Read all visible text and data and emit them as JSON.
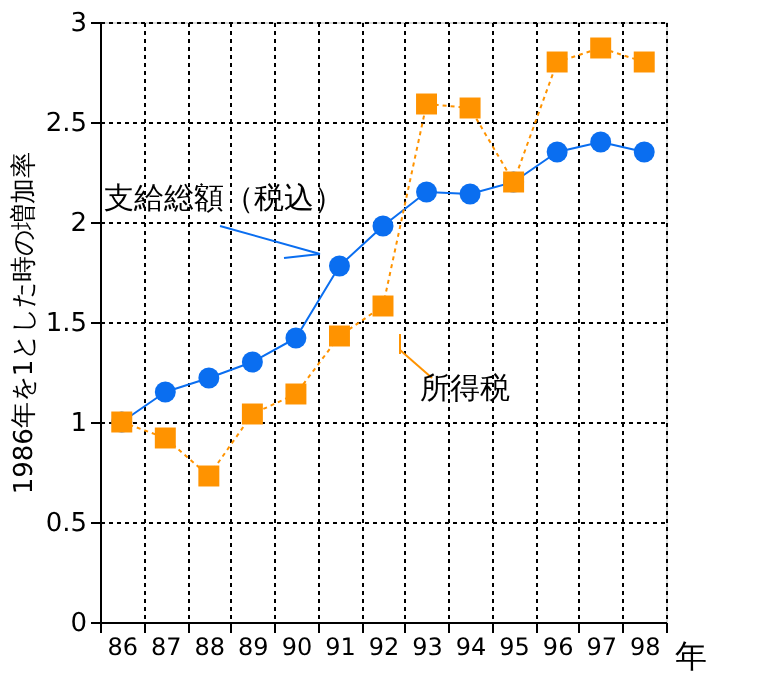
{
  "chart_data": {
    "type": "line",
    "xlabel": "年",
    "ylabel": "1986年を1とした時の増加率",
    "categories": [
      "86",
      "87",
      "88",
      "89",
      "90",
      "91",
      "92",
      "93",
      "94",
      "95",
      "96",
      "97",
      "98"
    ],
    "series": [
      {
        "name": "支給総額（税込）",
        "color": "#0a6ef0",
        "marker": "circle",
        "line_style": "solid",
        "values": [
          1.0,
          1.15,
          1.22,
          1.3,
          1.42,
          1.78,
          1.98,
          2.15,
          2.14,
          2.2,
          2.35,
          2.4,
          2.35
        ]
      },
      {
        "name": "所得税",
        "color": "#ff9300",
        "marker": "square",
        "line_style": "dotted",
        "values": [
          1.0,
          0.92,
          0.73,
          1.04,
          1.14,
          1.43,
          1.58,
          2.59,
          2.57,
          2.2,
          2.8,
          2.87,
          2.8
        ]
      }
    ],
    "ylim": [
      0,
      3
    ],
    "yticks": [
      0,
      0.5,
      1,
      1.5,
      2,
      2.5,
      3
    ],
    "grid": true
  }
}
